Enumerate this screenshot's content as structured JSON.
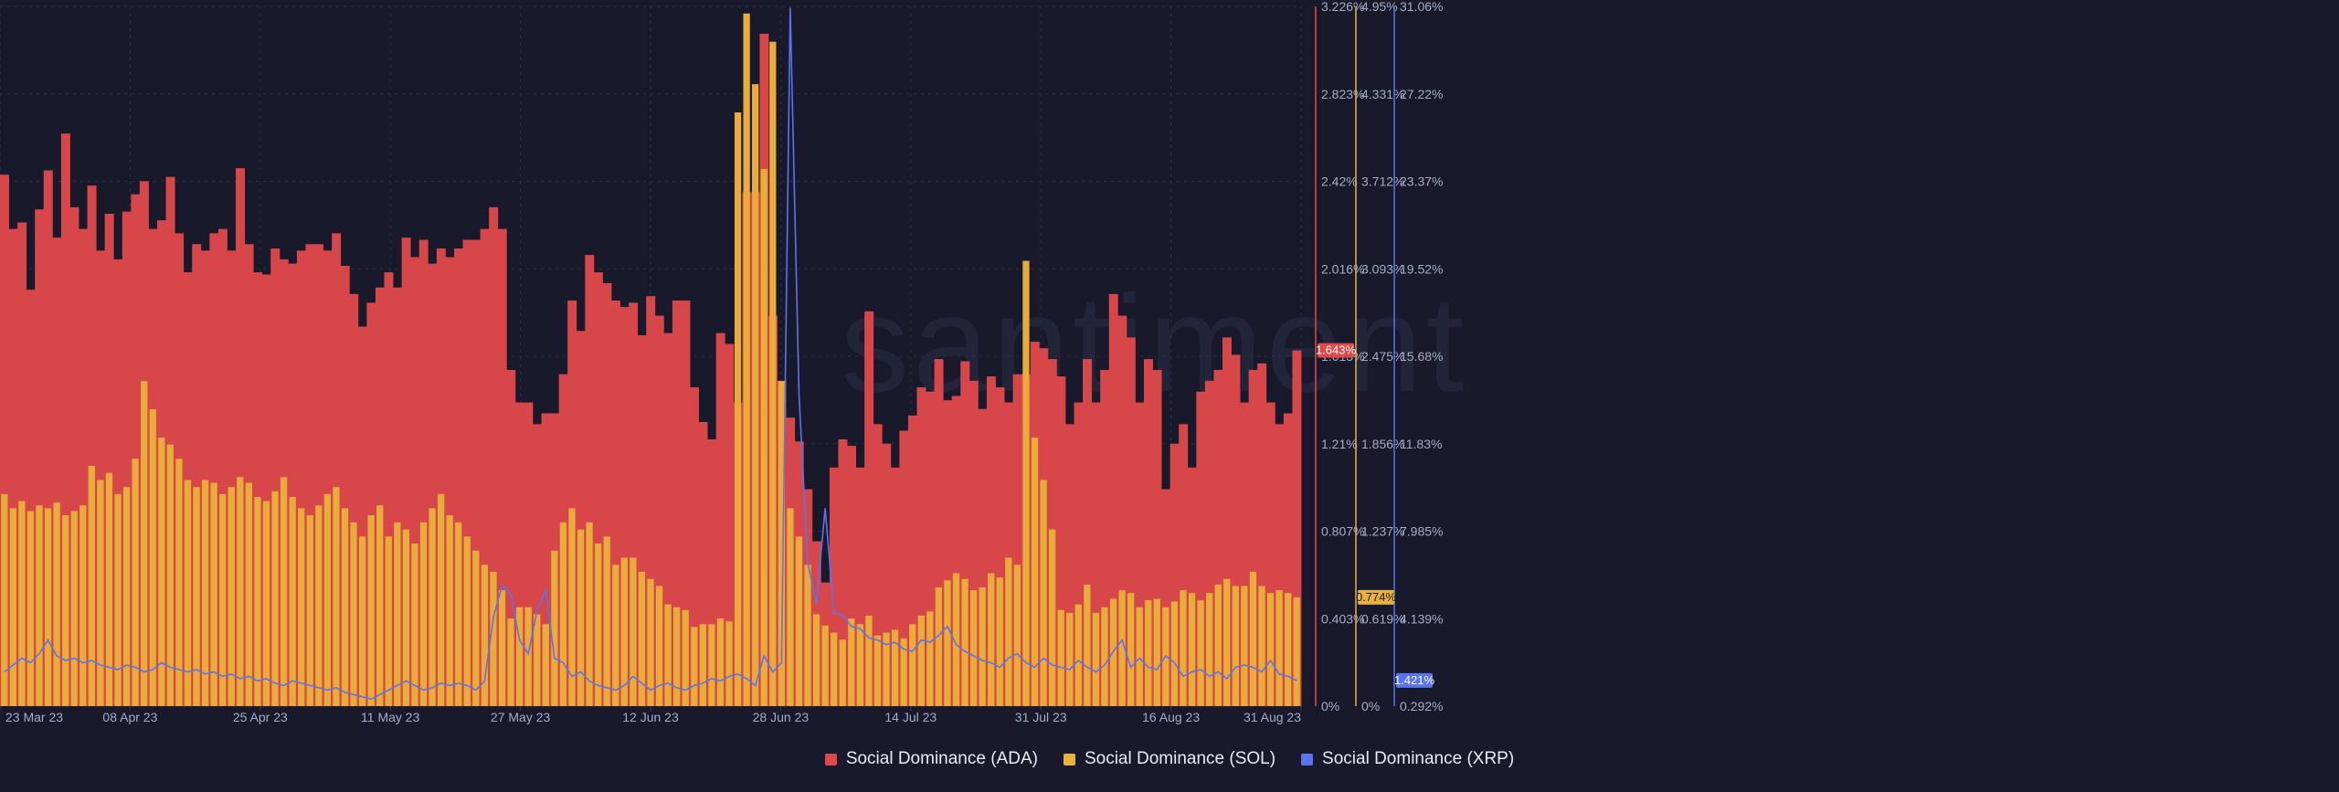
{
  "watermark": "santiment",
  "colors": {
    "background": "#181a2b",
    "ada": "#d7474a",
    "sol": "#e8ac3a",
    "xrp": "#5b74ee",
    "grid": "#2b2f45",
    "text": "#a4acc4"
  },
  "legend": [
    {
      "label": "Social Dominance (ADA)",
      "color": "#e0494b"
    },
    {
      "label": "Social Dominance (SOL)",
      "color": "#e9b23c"
    },
    {
      "label": "Social Dominance (XRP)",
      "color": "#5b74ee"
    }
  ],
  "chart_data": {
    "type": "bar",
    "x_start": "2023-03-23",
    "x_end": "2023-08-31",
    "x_ticks": [
      "23 Mar 23",
      "08 Apr 23",
      "25 Apr 23",
      "11 May 23",
      "27 May 23",
      "12 Jun 23",
      "28 Jun 23",
      "14 Jul 23",
      "31 Jul 23",
      "16 Aug 23",
      "31 Aug 23"
    ],
    "grid": true,
    "legend_position": "bottom-center",
    "axes": [
      {
        "series": "ADA",
        "color": "#e0494b",
        "ylim": [
          0,
          3.226
        ],
        "ticks": [
          "0%",
          "0.403%",
          "0.807%",
          "1.21%",
          "1.613%",
          "2.016%",
          "2.42%",
          "2.823%",
          "3.226%"
        ],
        "current_label": "1.643%"
      },
      {
        "series": "SOL",
        "color": "#e9b23c",
        "ylim": [
          0,
          4.95
        ],
        "ticks": [
          "0%",
          "0.619%",
          "1.237%",
          "1.856%",
          "2.475%",
          "3.093%",
          "3.712%",
          "4.331%",
          "4.95%"
        ],
        "current_label": "0.774%"
      },
      {
        "series": "XRP",
        "color": "#5b74ee",
        "ylim": [
          0.292,
          31.06
        ],
        "ticks": [
          "0.292%",
          "4.139%",
          "7.985%",
          "11.83%",
          "15.68%",
          "19.52%",
          "23.37%",
          "27.22%",
          "31.06%"
        ],
        "current_label": "1.421%"
      }
    ],
    "series": [
      {
        "name": "Social Dominance (ADA)",
        "unit": "%",
        "values": [
          2.45,
          2.2,
          2.23,
          1.92,
          2.29,
          2.47,
          2.16,
          2.64,
          2.3,
          2.2,
          2.4,
          2.1,
          2.27,
          2.06,
          2.28,
          2.36,
          2.42,
          2.2,
          2.24,
          2.44,
          2.18,
          2.0,
          2.13,
          2.1,
          2.18,
          2.2,
          2.1,
          2.48,
          2.13,
          2.0,
          1.99,
          2.11,
          2.06,
          2.04,
          2.1,
          2.13,
          2.13,
          2.1,
          2.18,
          2.03,
          1.9,
          1.75,
          1.86,
          1.93,
          2.0,
          1.93,
          2.16,
          2.07,
          2.15,
          2.04,
          2.11,
          2.07,
          2.11,
          2.15,
          2.15,
          2.2,
          2.3,
          2.2,
          1.55,
          1.4,
          1.4,
          1.3,
          1.35,
          1.35,
          1.53,
          1.87,
          1.73,
          2.08,
          2.0,
          1.95,
          1.87,
          1.84,
          1.86,
          1.71,
          1.89,
          1.8,
          1.72,
          1.87,
          1.87,
          1.47,
          1.31,
          1.23,
          1.72,
          1.67,
          1.4,
          2.37,
          2.37,
          3.1,
          1.8,
          1.5,
          1.33,
          1.22,
          1.0,
          0.76,
          0.57,
          1.1,
          1.23,
          1.2,
          1.1,
          1.82,
          1.3,
          1.21,
          1.1,
          1.27,
          1.34,
          1.47,
          1.45,
          1.6,
          1.41,
          1.43,
          1.59,
          1.5,
          1.37,
          1.52,
          1.47,
          1.4,
          1.53,
          1.53,
          1.68,
          1.65,
          1.6,
          1.52,
          1.3,
          1.4,
          1.6,
          1.4,
          1.55,
          1.9,
          1.8,
          1.7,
          1.4,
          1.6,
          1.55,
          1.0,
          1.21,
          1.3,
          1.1,
          1.45,
          1.5,
          1.55,
          1.7,
          1.62,
          1.4,
          1.55,
          1.58,
          1.4,
          1.3,
          1.35,
          1.64
        ],
        "color": "#d7474a"
      },
      {
        "name": "Social Dominance (SOL)",
        "unit": "%",
        "values": [
          1.5,
          1.4,
          1.45,
          1.38,
          1.42,
          1.4,
          1.44,
          1.35,
          1.38,
          1.42,
          1.7,
          1.6,
          1.65,
          1.5,
          1.55,
          1.75,
          2.3,
          2.1,
          1.9,
          1.85,
          1.75,
          1.6,
          1.55,
          1.6,
          1.58,
          1.5,
          1.55,
          1.62,
          1.58,
          1.48,
          1.45,
          1.52,
          1.62,
          1.48,
          1.4,
          1.35,
          1.42,
          1.5,
          1.55,
          1.4,
          1.3,
          1.2,
          1.35,
          1.42,
          1.2,
          1.3,
          1.25,
          1.15,
          1.3,
          1.4,
          1.5,
          1.35,
          1.3,
          1.2,
          1.1,
          1.0,
          0.95,
          0.82,
          0.62,
          0.7,
          0.7,
          0.65,
          0.58,
          1.1,
          1.3,
          1.4,
          1.25,
          1.3,
          1.15,
          1.2,
          1.0,
          1.05,
          1.05,
          0.95,
          0.9,
          0.85,
          0.72,
          0.7,
          0.68,
          0.56,
          0.58,
          0.58,
          0.62,
          0.6,
          4.2,
          4.9,
          4.4,
          3.8,
          4.7,
          2.3,
          1.4,
          1.2,
          1.0,
          0.65,
          0.57,
          0.52,
          0.47,
          0.62,
          0.58,
          0.64,
          0.5,
          0.52,
          0.54,
          0.48,
          0.58,
          0.64,
          0.67,
          0.84,
          0.89,
          0.94,
          0.9,
          0.82,
          0.84,
          0.94,
          0.91,
          1.05,
          1.0,
          3.15,
          1.9,
          1.6,
          1.25,
          0.68,
          0.66,
          0.72,
          0.86,
          0.66,
          0.7,
          0.76,
          0.82,
          0.8,
          0.7,
          0.75,
          0.76,
          0.7,
          0.74,
          0.82,
          0.8,
          0.75,
          0.8,
          0.86,
          0.9,
          0.85,
          0.85,
          0.95,
          0.85,
          0.8,
          0.82,
          0.8,
          0.77
        ],
        "color": "#e8ac3a"
      },
      {
        "name": "Social Dominance (XRP)",
        "unit": "%",
        "values": [
          1.8,
          2.1,
          2.4,
          2.2,
          2.6,
          3.2,
          2.5,
          2.3,
          2.4,
          2.2,
          2.3,
          2.1,
          2.0,
          1.9,
          2.1,
          2.0,
          1.8,
          1.9,
          2.2,
          2.0,
          1.9,
          1.8,
          1.9,
          1.7,
          1.8,
          1.6,
          1.7,
          1.5,
          1.6,
          1.4,
          1.5,
          1.3,
          1.2,
          1.4,
          1.3,
          1.2,
          1.1,
          1.0,
          1.1,
          0.9,
          0.8,
          0.7,
          0.6,
          0.8,
          1.0,
          1.2,
          1.4,
          1.2,
          1.0,
          1.1,
          1.3,
          1.2,
          1.3,
          1.2,
          1.0,
          1.4,
          4.2,
          5.6,
          5.2,
          3.2,
          2.6,
          4.5,
          5.4,
          2.4,
          2.2,
          1.6,
          1.8,
          1.4,
          1.2,
          1.1,
          1.0,
          1.2,
          1.6,
          1.3,
          1.0,
          1.2,
          1.3,
          1.1,
          1.0,
          1.2,
          1.3,
          1.5,
          1.4,
          1.6,
          1.7,
          1.5,
          1.2,
          2.5,
          1.8,
          2.2,
          31.0,
          14.0,
          6.6,
          4.8,
          9.0,
          4.4,
          4.3,
          3.8,
          3.7,
          3.3,
          3.2,
          3.0,
          3.1,
          2.8,
          2.7,
          3.2,
          3.1,
          3.4,
          3.8,
          3.0,
          2.7,
          2.5,
          2.3,
          2.2,
          2.0,
          2.4,
          2.6,
          2.2,
          2.0,
          2.4,
          2.1,
          2.0,
          1.9,
          2.3,
          2.0,
          1.8,
          2.1,
          2.7,
          3.2,
          2.0,
          2.4,
          2.0,
          1.9,
          2.5,
          2.2,
          1.6,
          1.8,
          1.9,
          1.6,
          1.8,
          1.5,
          2.0,
          2.1,
          2.0,
          1.8,
          2.3,
          1.7,
          1.6,
          1.42
        ],
        "color": "#5b74ee"
      }
    ]
  }
}
